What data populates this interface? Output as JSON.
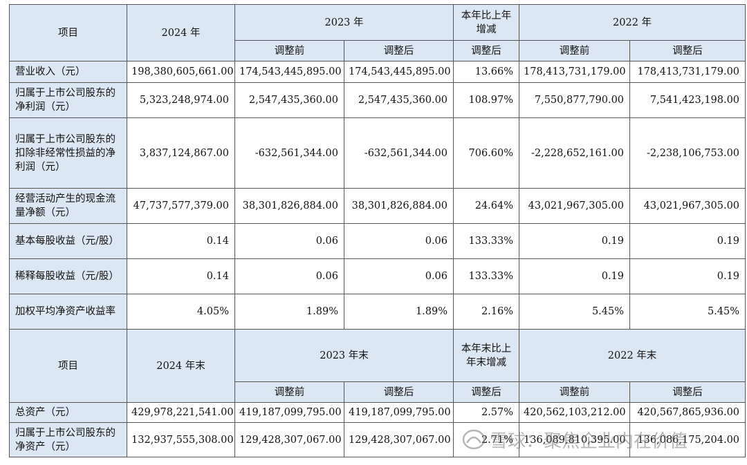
{
  "section1": {
    "h_item": "项目",
    "h_2024": "2024 年",
    "h_2023": "2023 年",
    "h_change": "本年比上年增减",
    "h_2022": "2022 年",
    "sub_before_2023": "调整前",
    "sub_after_2023": "调整后",
    "sub_change": "调整后",
    "sub_before_2022": "调整前",
    "sub_after_2022": "调整后",
    "rows": [
      {
        "label": "营业收入（元）",
        "v2024": "198,380,605,661.00",
        "v2023_before": "174,543,445,895.00",
        "v2023_after": "174,543,445,895.00",
        "change": "13.66%",
        "v2022_before": "178,413,731,179.00",
        "v2022_after": "178,413,731,179.00"
      },
      {
        "label": "归属于上市公司股东的净利润（元）",
        "v2024": "5,323,248,974.00",
        "v2023_before": "2,547,435,360.00",
        "v2023_after": "2,547,435,360.00",
        "change": "108.97%",
        "v2022_before": "7,550,877,790.00",
        "v2022_after": "7,541,423,198.00"
      },
      {
        "label": "归属于上市公司股东的扣除非经常性损益的净利润（元）",
        "v2024": "3,837,124,867.00",
        "v2023_before": "-632,561,344.00",
        "v2023_after": "-632,561,344.00",
        "change": "706.60%",
        "v2022_before": "-2,228,652,161.00",
        "v2022_after": "-2,238,106,753.00"
      },
      {
        "label": "经营活动产生的现金流量净额（元）",
        "v2024": "47,737,577,379.00",
        "v2023_before": "38,301,826,884.00",
        "v2023_after": "38,301,826,884.00",
        "change": "24.64%",
        "v2022_before": "43,021,967,305.00",
        "v2022_after": "43,021,967,305.00"
      },
      {
        "label": "基本每股收益（元/股）",
        "v2024": "0.14",
        "v2023_before": "0.06",
        "v2023_after": "0.06",
        "change": "133.33%",
        "v2022_before": "0.19",
        "v2022_after": "0.19"
      },
      {
        "label": "稀释每股收益（元/股）",
        "v2024": "0.14",
        "v2023_before": "0.06",
        "v2023_after": "0.06",
        "change": "133.33%",
        "v2022_before": "0.19",
        "v2022_after": "0.19"
      },
      {
        "label": "加权平均净资产收益率",
        "v2024": "4.05%",
        "v2023_before": "1.89%",
        "v2023_after": "1.89%",
        "change": "2.16%",
        "v2022_before": "5.45%",
        "v2022_after": "5.45%"
      }
    ]
  },
  "section2": {
    "h_item": "项目",
    "h_2024": "2024 年末",
    "h_2023": "2023 年末",
    "h_change": "本年末比上年末增减",
    "h_2022": "2022 年末",
    "sub_before_2023": "调整前",
    "sub_after_2023": "调整后",
    "sub_change": "调整后",
    "sub_before_2022": "调整前",
    "sub_after_2022": "调整后",
    "rows": [
      {
        "label": "总资产（元）",
        "v2024": "429,978,221,541.00",
        "v2023_before": "419,187,099,795.00",
        "v2023_after": "419,187,099,795.00",
        "change": "2.57%",
        "v2022_before": "420,562,103,212.00",
        "v2022_after": "420,567,865,936.00"
      },
      {
        "label": "归属于上市公司股东的净资产（元）",
        "v2024": "132,937,555,308.00",
        "v2023_before": "129,428,307,067.00",
        "v2023_after": "129,428,307,067.00",
        "change": "2.71%",
        "v2022_before": "136,089,810,395.00",
        "v2022_after": "136,086,175,204.00"
      }
    ]
  },
  "watermark": {
    "text": "雪球：聚焦企业内在价值",
    "icon": "snowball-logo-icon"
  }
}
